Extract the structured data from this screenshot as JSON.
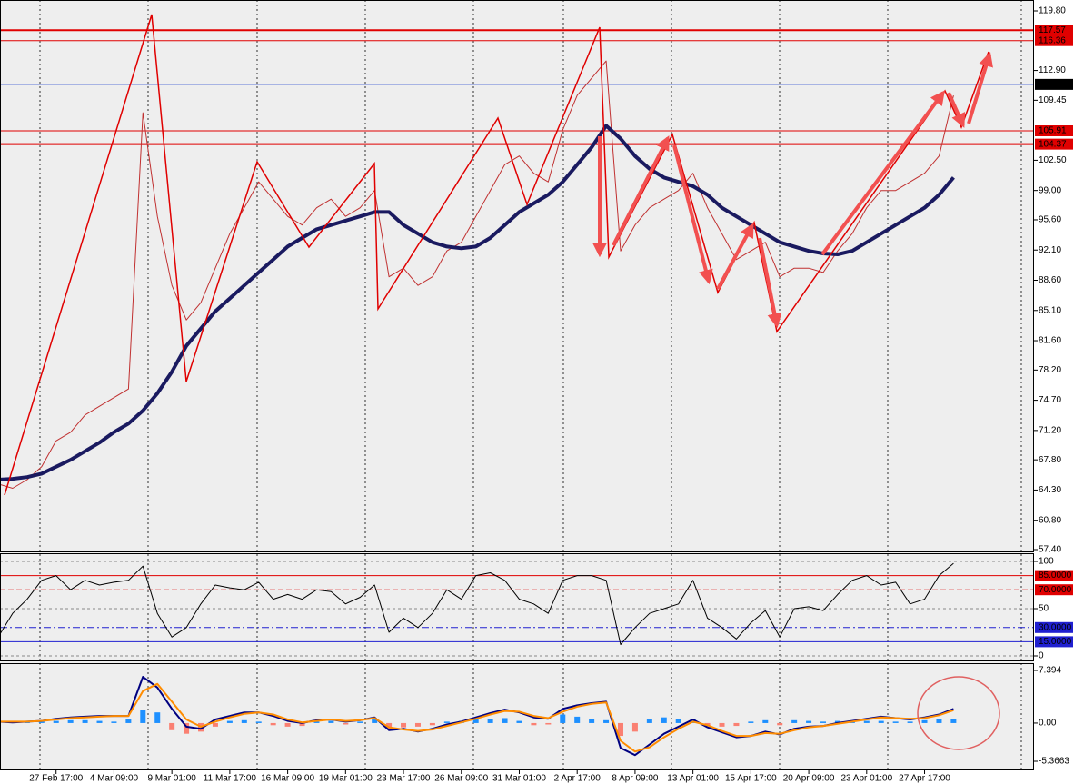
{
  "chart_data": [
    {
      "type": "line",
      "categories": [
        null,
        null,
        null,
        null,
        "27 Feb 17:00",
        null,
        null,
        null,
        "4 Mar 09:00",
        null,
        null,
        null,
        "9 Mar 01:00",
        null,
        null,
        null,
        "11 Mar 17:00",
        null,
        null,
        null,
        "16 Mar 09:00",
        null,
        null,
        null,
        "19 Mar 01:00",
        null,
        null,
        null,
        "23 Mar 17:00",
        null,
        null,
        null,
        "26 Mar 09:00",
        null,
        null,
        null,
        "31 Mar 01:00",
        null,
        null,
        null,
        "2 Apr 17:00",
        null,
        null,
        null,
        "8 Apr 09:00",
        null,
        null,
        null,
        "13 Apr 01:00",
        null,
        null,
        null,
        "15 Apr 17:00",
        null,
        null,
        null,
        "20 Apr 09:00",
        null,
        null,
        null,
        "23 Apr 01:00",
        null,
        null,
        null,
        "27 Apr 17:00",
        null,
        null
      ],
      "series": [
        {
          "color": "#c03030",
          "width": 1,
          "values": [
            65,
            64.5,
            65.5,
            67,
            70,
            71,
            73,
            74,
            75,
            76,
            108,
            96,
            88,
            84,
            86,
            90,
            94,
            97,
            100,
            98,
            96,
            95,
            97,
            98,
            96,
            97,
            99,
            89,
            90,
            88,
            89,
            92,
            93,
            96,
            99,
            102,
            103,
            101,
            100,
            106,
            110,
            112,
            114,
            92,
            95,
            97,
            98,
            99,
            101,
            97,
            94,
            91,
            92,
            93,
            89,
            90,
            90,
            89.5,
            92,
            94,
            97,
            99,
            99,
            100,
            101,
            103,
            110
          ]
        },
        {
          "color": "#1a1a60",
          "width": 4,
          "values": [
            65.5,
            65.6,
            65.8,
            66.2,
            67,
            67.8,
            68.8,
            69.8,
            71,
            72,
            73.5,
            75.5,
            78,
            81,
            83,
            85,
            86.5,
            88,
            89.5,
            91,
            92.5,
            93.5,
            94.5,
            95,
            95.5,
            96,
            96.5,
            96.5,
            95,
            94,
            93,
            92.5,
            92.3,
            92.5,
            93.5,
            95,
            96.5,
            97.5,
            98.5,
            100,
            102,
            104,
            106.5,
            105,
            103,
            101.5,
            100.5,
            100,
            99.5,
            98.5,
            97,
            96,
            95,
            94,
            93,
            92.5,
            92,
            91.7,
            91.6,
            92,
            93,
            94,
            95,
            96,
            97,
            98.5,
            100.5
          ]
        }
      ],
      "ylim": [
        57.4,
        119.8
      ],
      "yticks": [
        {
          "value": 119.8,
          "label": "119.80"
        },
        {
          "value": 112.9,
          "label": "112.90"
        },
        109.45,
        {
          "value": 102.5,
          "label": "102.50"
        },
        {
          "value": 99,
          "label": "99.00"
        },
        {
          "value": 95.6,
          "label": "95.60"
        },
        {
          "value": 92.1,
          "label": "92.10"
        },
        {
          "value": 88.6,
          "label": "88.60"
        },
        {
          "value": 85.1,
          "label": "85.10"
        },
        {
          "value": 81.6,
          "label": "81.60"
        },
        {
          "value": 78.2,
          "label": "78.20"
        },
        {
          "value": 74.7,
          "label": "74.70"
        },
        {
          "value": 71.2,
          "label": "71.20"
        },
        {
          "value": 67.8,
          "label": "67.80"
        },
        {
          "value": 64.3,
          "label": "64.30"
        },
        {
          "value": 60.8,
          "label": "60.80"
        },
        {
          "value": 57.4,
          "label": "57.40"
        }
      ],
      "levels": [
        {
          "value": 117.57,
          "label": "117.57",
          "color": "#e00000",
          "box": "#e00000",
          "width": 2
        },
        {
          "value": 116.36,
          "label": "116.36",
          "color": "#e00000",
          "box": "#e00000",
          "width": 1
        },
        {
          "value": 111.29,
          "label": "111.29",
          "color": "#3050d0",
          "box": "#000000",
          "width": 1
        },
        {
          "value": 105.91,
          "label": "105.91",
          "color": "#e00000",
          "box": "#e00000",
          "width": 1
        },
        {
          "value": 104.37,
          "label": "104.37",
          "color": "#e00000",
          "box": "#e00000",
          "width": 2
        }
      ]
    },
    {
      "type": "line",
      "series": [
        {
          "color": "#000000",
          "width": 1,
          "values": [
            20,
            45,
            60,
            80,
            85,
            70,
            80,
            75,
            78,
            80,
            95,
            45,
            20,
            30,
            55,
            75,
            72,
            70,
            78,
            60,
            65,
            60,
            70,
            68,
            55,
            62,
            75,
            25,
            40,
            30,
            45,
            70,
            60,
            85,
            88,
            80,
            60,
            55,
            45,
            80,
            85,
            85,
            80,
            12,
            30,
            45,
            50,
            55,
            80,
            40,
            30,
            18,
            35,
            48,
            20,
            50,
            52,
            48,
            65,
            80,
            85,
            75,
            78,
            55,
            60,
            85,
            98
          ]
        }
      ],
      "ylim": [
        0,
        100
      ],
      "yticks": [
        100,
        50,
        0
      ],
      "grid": true,
      "levels": [
        {
          "value": 85,
          "label": "85.0000",
          "color": "#e00000",
          "box": "#e00000",
          "width": 1
        },
        {
          "value": 70,
          "label": "70.0000",
          "color": "#e00000",
          "box": "#e00000",
          "width": 1,
          "dash": "6 3"
        },
        {
          "value": 30,
          "label": "30.0000",
          "color": "#2020d0",
          "box": "#2020d0",
          "width": 1,
          "dash": "8 3 2 3"
        },
        {
          "value": 15,
          "label": "15.0000",
          "color": "#2020d0",
          "box": "#2020d0",
          "width": 1
        }
      ]
    },
    {
      "type": "macd",
      "histogram": [
        0.1,
        0.1,
        0.1,
        0.2,
        0.3,
        0.4,
        0.4,
        0.3,
        0.2,
        0.5,
        1.8,
        1.5,
        -1,
        -1.5,
        -1.2,
        -0.5,
        0.3,
        0.4,
        0.2,
        -0.3,
        -0.5,
        -0.4,
        0.2,
        0.3,
        -0.2,
        0.2,
        0.5,
        -0.8,
        -0.6,
        -0.5,
        -0.3,
        0.2,
        0.3,
        0.5,
        0.6,
        0.7,
        0.3,
        -0.3,
        -0.2,
        1.2,
        0.9,
        0.6,
        0.4,
        -1.8,
        -1.2,
        0.5,
        0.8,
        0.6,
        0.5,
        -0.4,
        -0.5,
        -0.4,
        0.2,
        0.4,
        -0.3,
        0.4,
        0.3,
        0.2,
        0.3,
        0.3,
        0.3,
        0.3,
        0.2,
        0.2,
        0.4,
        0.6,
        0.6
      ],
      "pos_color": "#1e90ff",
      "neg_color": "#fa8072",
      "series": [
        {
          "color": "#000080",
          "width": 2,
          "values": [
            0.2,
            0.1,
            0.2,
            0.3,
            0.6,
            0.8,
            0.9,
            1,
            1,
            1,
            6.5,
            5,
            2,
            -0.5,
            -0.8,
            0.5,
            1,
            1.5,
            1.5,
            1,
            0.3,
            0,
            0.4,
            0.5,
            0.2,
            0.4,
            0.8,
            -1,
            -0.8,
            -1.2,
            -0.8,
            -0.2,
            0.2,
            0.8,
            1.4,
            1.9,
            1.5,
            0.8,
            0.6,
            2,
            2.5,
            2.8,
            3,
            -3.5,
            -4.5,
            -3,
            -1.5,
            -0.5,
            0.5,
            -0.6,
            -1.3,
            -2,
            -1.8,
            -1.2,
            -1.6,
            -0.8,
            -0.5,
            -0.4,
            0,
            0.3,
            0.6,
            0.9,
            0.7,
            0.5,
            0.8,
            1.2,
            2
          ]
        },
        {
          "color": "#ff8c00",
          "width": 2,
          "values": [
            0.2,
            0.2,
            0.2,
            0.3,
            0.5,
            0.7,
            0.8,
            0.9,
            1,
            1,
            4.5,
            5.5,
            3,
            0.5,
            -0.5,
            0.2,
            0.8,
            1.3,
            1.5,
            1.2,
            0.5,
            0.1,
            0.3,
            0.5,
            0.3,
            0.4,
            0.7,
            -0.6,
            -0.9,
            -1.1,
            -0.9,
            -0.4,
            0.1,
            0.6,
            1.2,
            1.7,
            1.6,
            1,
            0.7,
            1.6,
            2.3,
            2.7,
            2.9,
            -2.5,
            -4,
            -3.4,
            -2,
            -0.8,
            0.2,
            -0.3,
            -1.1,
            -1.8,
            -1.8,
            -1.4,
            -1.5,
            -1,
            -0.6,
            -0.4,
            -0.1,
            0.2,
            0.5,
            0.8,
            0.7,
            0.6,
            0.7,
            1.1,
            1.8
          ]
        }
      ],
      "ylim": [
        -5.3663,
        7.394
      ],
      "yticks": [
        7.394,
        {
          "value": 0,
          "label": "0.00"
        },
        -5.3663
      ]
    }
  ]
}
